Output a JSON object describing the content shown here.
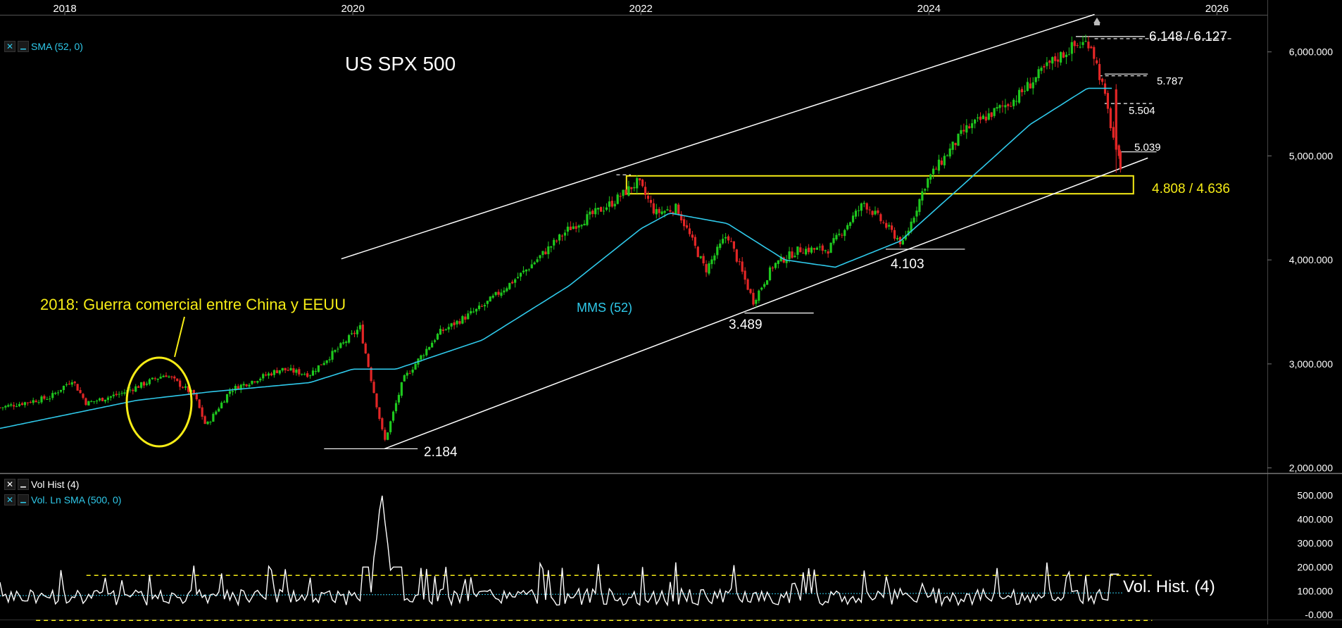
{
  "chart_data": {
    "type": "candlestick",
    "title": "US SPX 500",
    "x_tick_labels": [
      "2018",
      "2020",
      "2022",
      "2024",
      "2026"
    ],
    "y_tick_labels": [
      "2,000.000",
      "3,000.000",
      "4,000.000",
      "5,000.000",
      "6,000.000"
    ],
    "ylim": [
      1950,
      6350
    ],
    "xlim": [
      2017.55,
      2026.35
    ],
    "legend": {
      "sma": "SMA (52, 0)",
      "vol_hist": "Vol Hist (4)",
      "vol_sma": "Vol. Ln SMA (500, 0)"
    },
    "annotations": {
      "trade_war": "2018: Guerra comercial entre China y EEUU",
      "mms": "MMS (52)",
      "vol_label": "Vol. Hist. (4)",
      "zone": "4.808 / 4.636",
      "high": "6.148 / 6.127",
      "l5787": "5.787",
      "l5504": "5.504",
      "l5039": "5.039",
      "low2184": "2.184",
      "low3489": "3.489",
      "low4103": "4.103"
    },
    "price_path": [
      [
        2017.55,
        2580
      ],
      [
        2017.9,
        2680
      ],
      [
        2018.05,
        2850
      ],
      [
        2018.15,
        2620
      ],
      [
        2018.4,
        2720
      ],
      [
        2018.7,
        2900
      ],
      [
        2018.9,
        2700
      ],
      [
        2018.98,
        2400
      ],
      [
        2019.15,
        2750
      ],
      [
        2019.5,
        2950
      ],
      [
        2019.7,
        2900
      ],
      [
        2019.9,
        3150
      ],
      [
        2020.05,
        3350
      ],
      [
        2020.12,
        2900
      ],
      [
        2020.22,
        2250
      ],
      [
        2020.35,
        2850
      ],
      [
        2020.6,
        3300
      ],
      [
        2020.9,
        3550
      ],
      [
        2021.2,
        3900
      ],
      [
        2021.5,
        4300
      ],
      [
        2021.8,
        4550
      ],
      [
        2021.98,
        4750
      ],
      [
        2022.1,
        4450
      ],
      [
        2022.25,
        4500
      ],
      [
        2022.45,
        3900
      ],
      [
        2022.6,
        4250
      ],
      [
        2022.78,
        3600
      ],
      [
        2022.92,
        3950
      ],
      [
        2023.1,
        4100
      ],
      [
        2023.3,
        4100
      ],
      [
        2023.55,
        4550
      ],
      [
        2023.82,
        4150
      ],
      [
        2023.98,
        4750
      ],
      [
        2024.25,
        5250
      ],
      [
        2024.6,
        5550
      ],
      [
        2024.85,
        5900
      ],
      [
        2025.0,
        6050
      ],
      [
        2025.12,
        6100
      ],
      [
        2025.2,
        5700
      ],
      [
        2025.3,
        5050
      ],
      [
        2025.33,
        4900
      ]
    ],
    "sma_path": [
      [
        2017.55,
        2380
      ],
      [
        2018.5,
        2650
      ],
      [
        2019.0,
        2730
      ],
      [
        2019.7,
        2820
      ],
      [
        2020.0,
        2950
      ],
      [
        2020.3,
        2950
      ],
      [
        2020.9,
        3230
      ],
      [
        2021.5,
        3750
      ],
      [
        2022.0,
        4300
      ],
      [
        2022.2,
        4450
      ],
      [
        2022.6,
        4350
      ],
      [
        2023.0,
        4000
      ],
      [
        2023.35,
        3930
      ],
      [
        2023.8,
        4180
      ],
      [
        2024.3,
        4800
      ],
      [
        2024.7,
        5300
      ],
      [
        2025.1,
        5650
      ],
      [
        2025.28,
        5650
      ]
    ],
    "channel_upper": [
      [
        2019.92,
        4010
      ],
      [
        2025.15,
        6360
      ]
    ],
    "channel_lower": [
      [
        2020.22,
        2184
      ],
      [
        2025.52,
        4980
      ]
    ],
    "support_zone": {
      "high": 4808,
      "low": 4636,
      "x_start": 2021.9,
      "x_end": 2025.42
    },
    "volume_chart": {
      "ylim": [
        -20000,
        540000
      ],
      "y_tick_labels": [
        "500.000",
        "400.000",
        "300.000",
        "200.000",
        "100.000",
        "-0.000"
      ],
      "upper_band": 165000,
      "lower_band": 0,
      "sma_level": 80000,
      "spike_peak": 520000,
      "spike_x": 2020.2
    },
    "colors": {
      "up": "#1ec81e",
      "down": "#e32626",
      "sma": "#2fc9ea",
      "annotation_yellow": "#f6ec16",
      "line": "#ffffff"
    }
  }
}
